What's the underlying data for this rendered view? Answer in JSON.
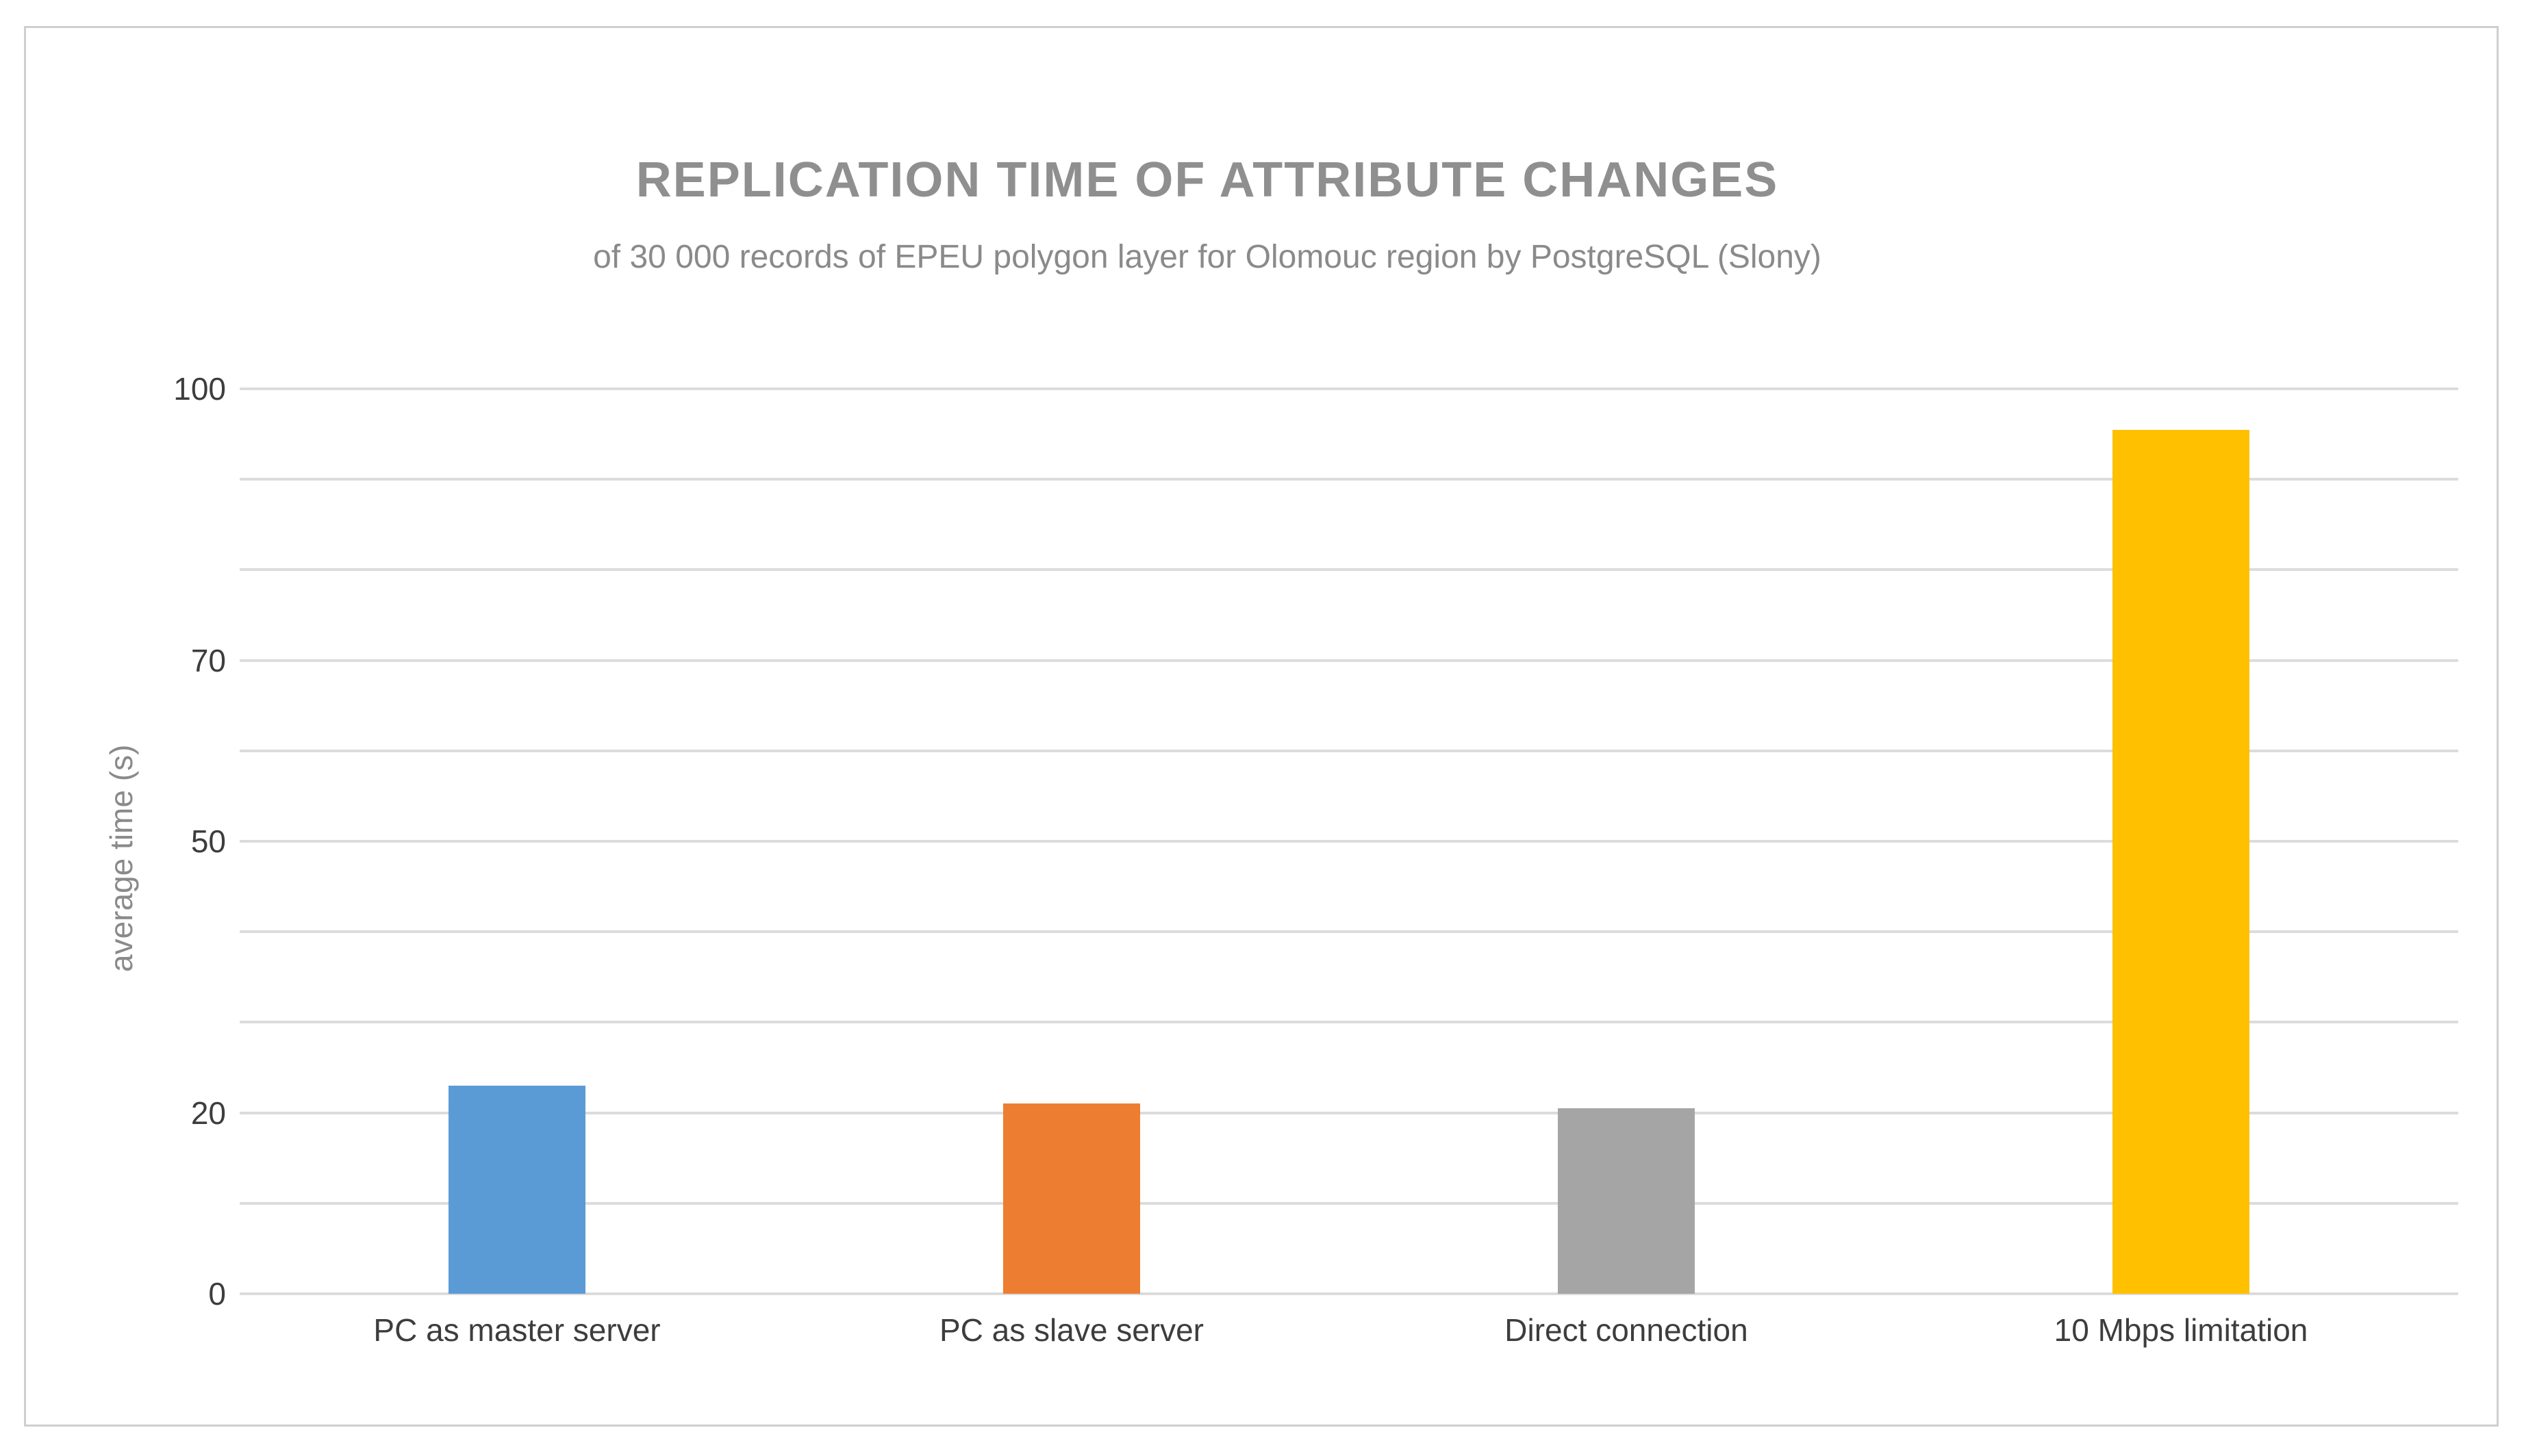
{
  "frame": {
    "border_color": "#cfcfcf",
    "background": "#ffffff"
  },
  "chart_data": {
    "type": "bar",
    "title": "REPLICATION TIME OF ATTRIBUTE CHANGES",
    "subtitle": "of 30 000 records of EPEU polygon layer for Olomouc region by PostgreSQL (Slony)",
    "xlabel": "",
    "ylabel": "average time (s)",
    "categories": [
      "PC as master server",
      "PC as slave server",
      "Direct connection",
      "10 Mbps limitation"
    ],
    "values": [
      23,
      21,
      20.5,
      95.5
    ],
    "bar_colors": [
      "#5b9bd5",
      "#ed7d31",
      "#a5a5a5",
      "#ffc000"
    ],
    "ylim": [
      0,
      100
    ],
    "ytick_labels": [
      0,
      20,
      50,
      70,
      100
    ],
    "gridline_step": 10,
    "grid": true,
    "legend_position": "none",
    "gridline_color": "#dcdcdc",
    "axis_text_color": "#3d3d3d",
    "title_color": "#8f8f8f",
    "subtitle_color": "#8a8a8a"
  }
}
